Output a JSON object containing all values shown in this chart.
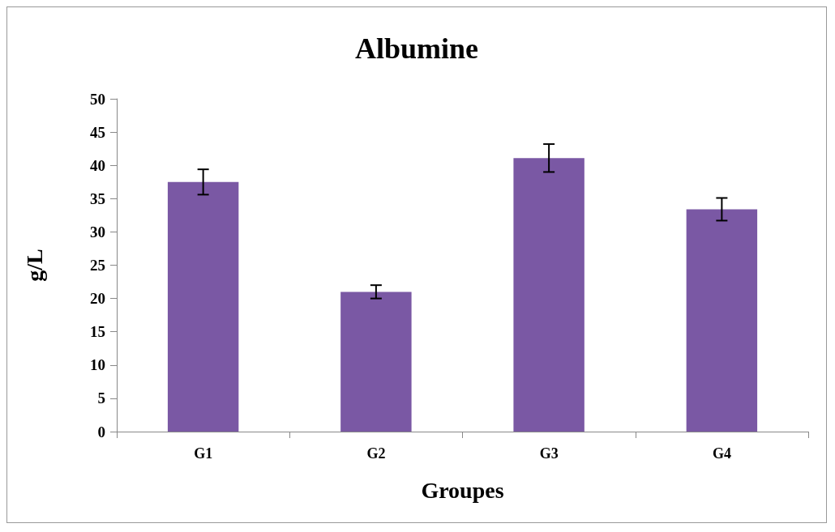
{
  "chart_data": {
    "type": "bar",
    "title": "Albumine",
    "xlabel": "Groupes",
    "ylabel": "g/L",
    "categories": [
      "G1",
      "G2",
      "G3",
      "G4"
    ],
    "values": [
      37.5,
      21.0,
      41.1,
      33.4
    ],
    "errors": [
      1.9,
      1.0,
      2.1,
      1.7
    ],
    "color": "#7a58a4",
    "ylim": [
      0,
      50
    ],
    "yticks": [
      0,
      5,
      10,
      15,
      20,
      25,
      30,
      35,
      40,
      45,
      50
    ],
    "grid": false
  }
}
